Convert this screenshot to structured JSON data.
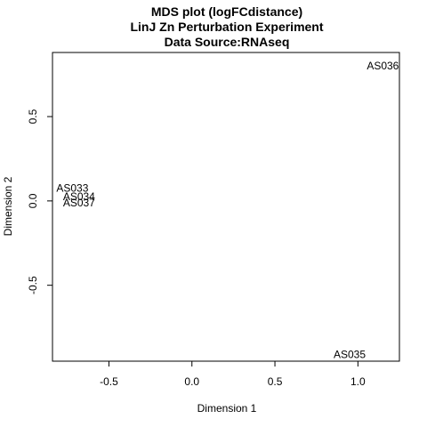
{
  "chart_data": {
    "type": "scatter",
    "title_lines": [
      "MDS plot (logFCdistance)",
      "LinJ Zn Perturbation Experiment",
      "Data Source:RNAseq"
    ],
    "xlabel": "Dimension 1",
    "ylabel": "Dimension 2",
    "xlim": [
      -0.84,
      1.25
    ],
    "ylim": [
      -0.95,
      0.88
    ],
    "xticks": [
      -0.5,
      0.0,
      0.5,
      1.0
    ],
    "xtick_labels": [
      "-0.5",
      "0.0",
      "0.5",
      "1.0"
    ],
    "yticks": [
      -0.5,
      0.0,
      0.5
    ],
    "ytick_labels": [
      "-0.5",
      "0.0",
      "0.5"
    ],
    "points": [
      {
        "label": "AS036",
        "x": 1.15,
        "y": 0.8
      },
      {
        "label": "AS033",
        "x": -0.72,
        "y": 0.075
      },
      {
        "label": "AS034",
        "x": -0.68,
        "y": 0.025
      },
      {
        "label": "AS037",
        "x": -0.68,
        "y": -0.01
      },
      {
        "label": "AS035",
        "x": 0.95,
        "y": -0.91
      }
    ],
    "grid": false,
    "legend": false
  }
}
